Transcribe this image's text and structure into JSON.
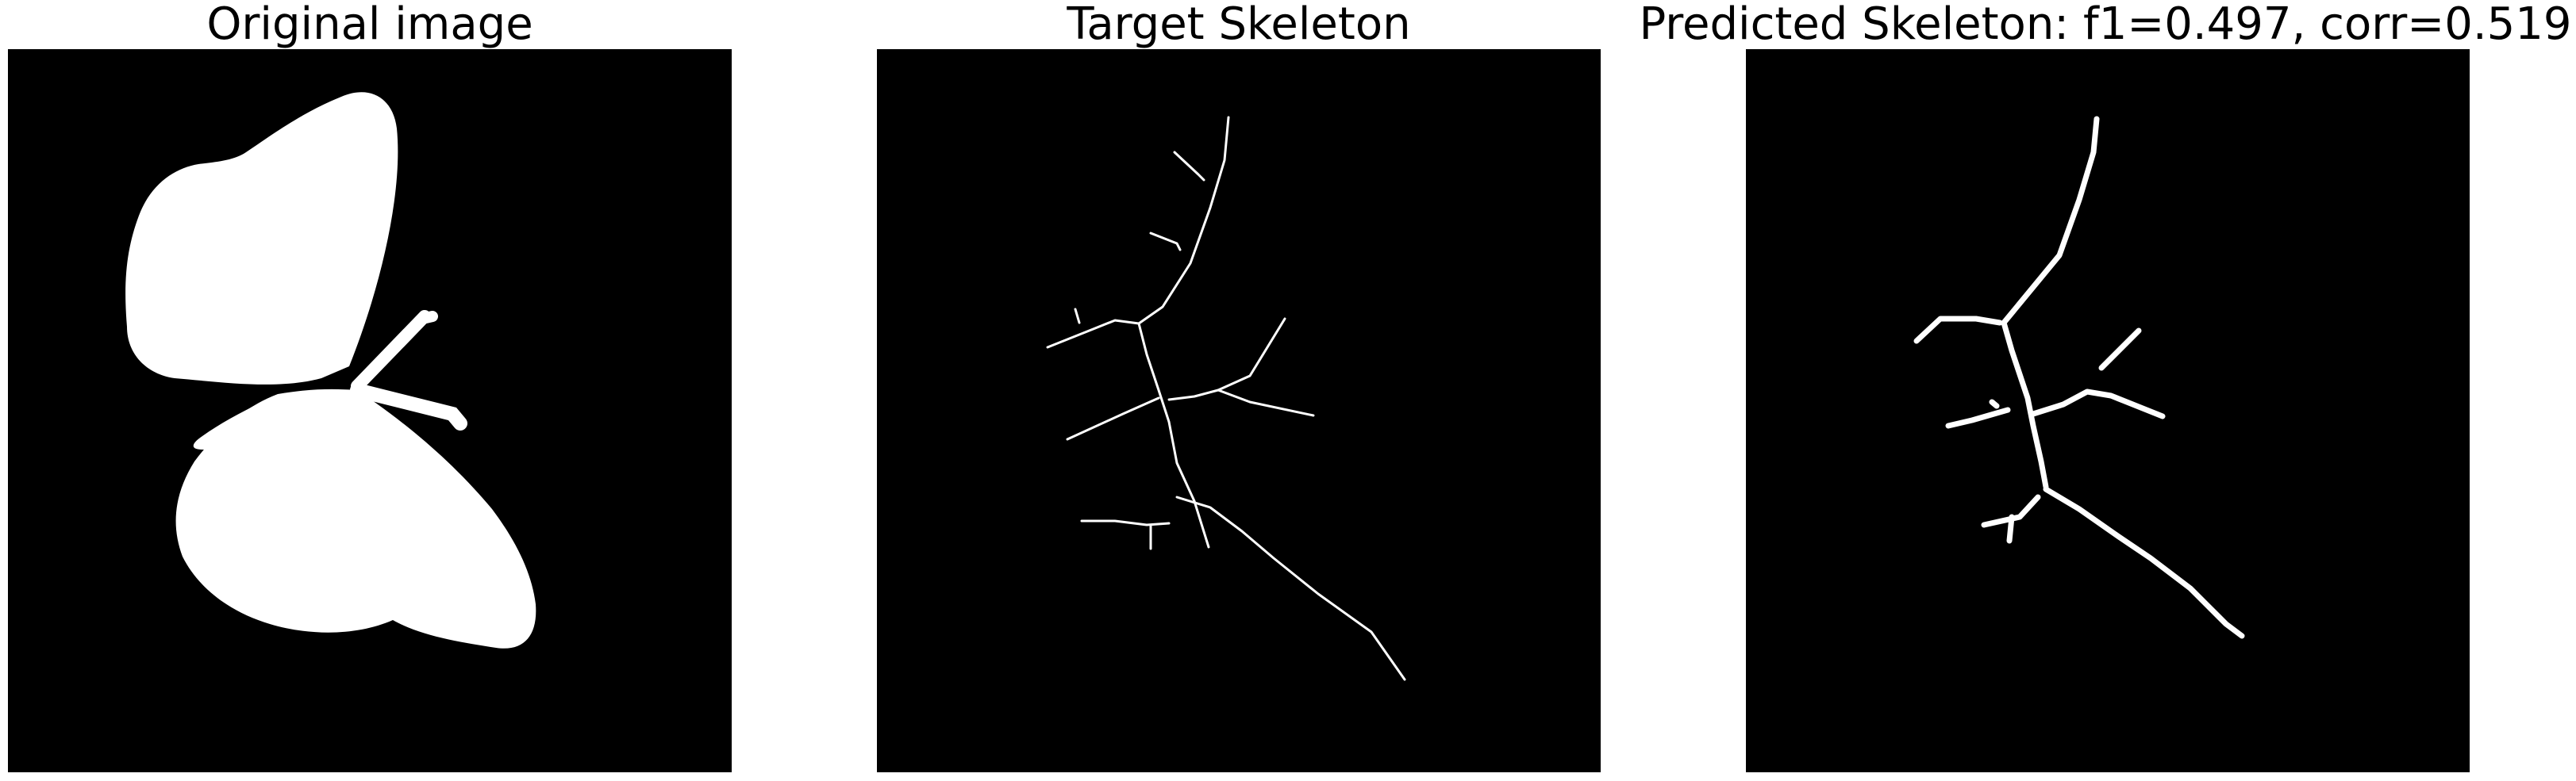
{
  "figure": {
    "panels": [
      {
        "title": "Original image"
      },
      {
        "title": "Target Skeleton"
      },
      {
        "title": "Predicted Skeleton: f1=0.497, corr=0.519"
      }
    ]
  },
  "colors": {
    "background": "#ffffff",
    "image_background": "#000000",
    "foreground": "#ffffff",
    "title_text": "#000000"
  }
}
